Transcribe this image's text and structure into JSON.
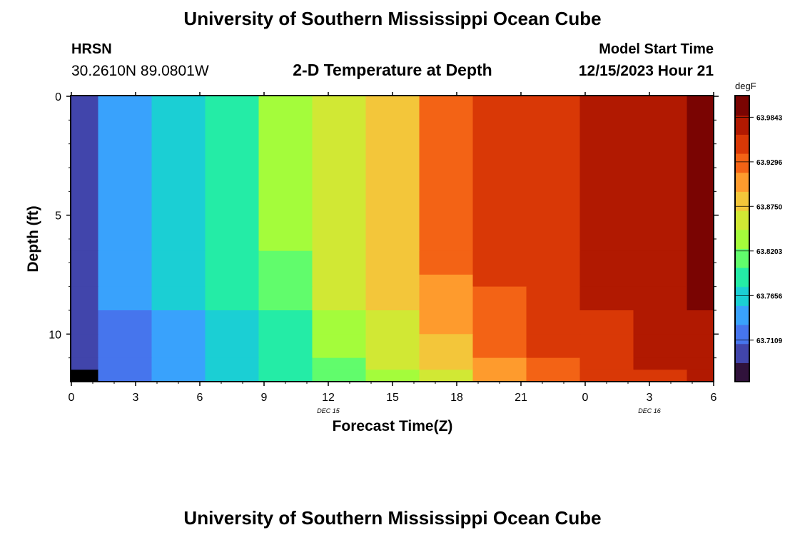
{
  "header": {
    "title": "University of Southern Mississippi Ocean Cube",
    "station": "HRSN",
    "coords": "30.2610N  89.0801W",
    "subtitle": "2-D Temperature at Depth",
    "model_start_label": "Model Start Time",
    "model_start_value": "12/15/2023 Hour 21",
    "footer_title": "University of Southern Mississippi Ocean Cube"
  },
  "chart_data": {
    "type": "heatmap",
    "title": "2-D Temperature at Depth",
    "xlabel": "Forecast Time(Z)",
    "ylabel": "Depth (ft)",
    "x_ticks": [
      "0",
      "3",
      "6",
      "9",
      "12",
      "15",
      "18",
      "21",
      "0",
      "3",
      "6"
    ],
    "date_labels": [
      {
        "label": "DEC 15",
        "at_tick": 4
      },
      {
        "label": "DEC 16",
        "at_tick": 9
      }
    ],
    "y_ticks": [
      "0",
      "5",
      "10"
    ],
    "ylim": [
      0,
      12
    ],
    "colorbar": {
      "unit": "degF",
      "ticks": [
        "63.9843",
        "63.9296",
        "63.8750",
        "63.8203",
        "63.7656",
        "63.7109"
      ],
      "colors": [
        "#30123b",
        "#4145ab",
        "#4675ed",
        "#39a2fc",
        "#1bcfd4",
        "#24eca6",
        "#61fc6c",
        "#a4fc3b",
        "#d1e834",
        "#f3c63a",
        "#fe9b2d",
        "#f36315",
        "#d93806",
        "#b11901",
        "#7a0402"
      ]
    },
    "depth_bins": [
      0,
      6.5,
      7.5,
      8,
      9,
      10,
      11,
      11.5,
      12
    ],
    "time_edges": [
      0,
      1.25,
      3.75,
      6.25,
      8.75,
      11.25,
      13.75,
      16.25,
      18.75,
      21.25,
      23.75,
      26.25,
      28.75,
      30
    ],
    "values": [
      [
        63.695,
        63.735,
        63.758,
        63.79,
        63.825,
        63.862,
        63.89,
        63.92,
        63.948,
        63.963,
        63.972,
        63.986,
        64.005
      ],
      [
        63.695,
        63.735,
        63.758,
        63.79,
        63.822,
        63.862,
        63.887,
        63.92,
        63.948,
        63.963,
        63.972,
        63.986,
        64.0
      ],
      [
        63.694,
        63.733,
        63.757,
        63.788,
        63.818,
        63.858,
        63.88,
        63.915,
        63.945,
        63.96,
        63.97,
        63.984,
        63.995
      ],
      [
        63.693,
        63.731,
        63.755,
        63.78,
        63.808,
        63.847,
        63.872,
        63.905,
        63.939,
        63.955,
        63.967,
        63.981,
        63.989
      ],
      [
        63.691,
        63.729,
        63.752,
        63.768,
        63.797,
        63.838,
        63.865,
        63.895,
        63.93,
        63.95,
        63.962,
        63.976,
        63.984
      ],
      [
        63.69,
        63.727,
        63.75,
        63.764,
        63.79,
        63.83,
        63.858,
        63.885,
        63.922,
        63.945,
        63.957,
        63.97,
        63.98
      ],
      [
        63.689,
        63.726,
        63.745,
        63.762,
        63.786,
        63.822,
        63.852,
        63.875,
        63.912,
        63.94,
        63.952,
        63.965,
        63.976
      ],
      [
        63.65,
        63.724,
        63.742,
        63.758,
        63.78,
        63.813,
        63.846,
        63.868,
        63.905,
        63.935,
        63.948,
        63.961,
        63.972
      ]
    ]
  }
}
